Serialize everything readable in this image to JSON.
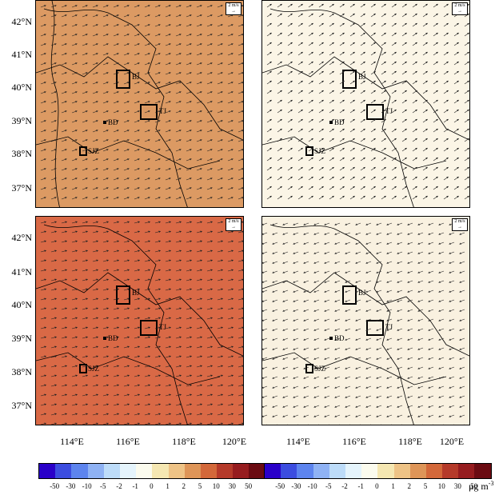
{
  "axes": {
    "y_labels": [
      "42°N",
      "41°N",
      "40°N",
      "39°N",
      "38°N",
      "37°N"
    ],
    "x_labels": [
      "114°E",
      "116°E",
      "118°E",
      "120°E"
    ]
  },
  "wind_scale": {
    "line1": "2 m/s",
    "line2": "→"
  },
  "cities": {
    "bj": "BJ",
    "tj": "TJ",
    "bd": "BD",
    "sjz": "SJZ"
  },
  "colorbar": {
    "colors": [
      "#2a00c9",
      "#3c4de0",
      "#5d84ee",
      "#8fb2f4",
      "#bddcf9",
      "#e5f4fc",
      "#fbfbee",
      "#f5e7b2",
      "#eec386",
      "#de9558",
      "#d3683a",
      "#b53a2a",
      "#961c1f",
      "#6b0b12"
    ],
    "ticks": [
      "-50",
      "-30",
      "-10",
      "-5",
      "-2",
      "-1",
      "0",
      "1",
      "2",
      "5",
      "10",
      "30",
      "50"
    ],
    "units": "μg m",
    "units_exp": "-3"
  },
  "panels": [
    {
      "fill": "#dc9a63",
      "wind": "east"
    },
    {
      "fill": "#fbf5e6",
      "wind": "northeast"
    },
    {
      "fill": "#d96946",
      "wind": "east"
    },
    {
      "fill": "#f9f1e0",
      "wind": "southeast"
    }
  ]
}
